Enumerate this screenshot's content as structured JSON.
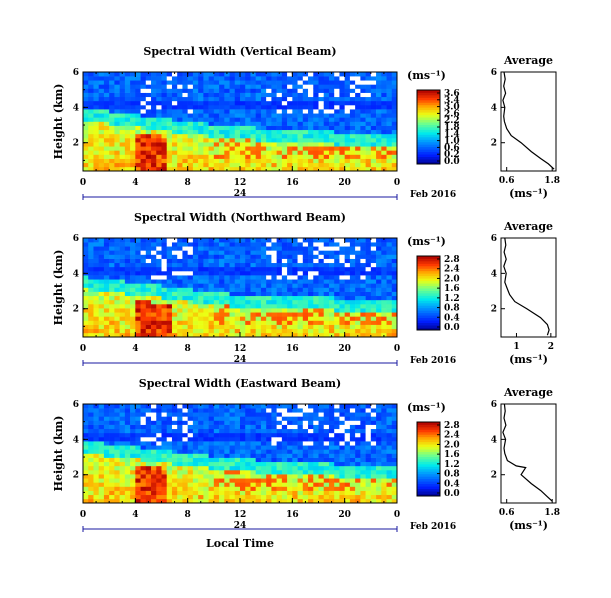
{
  "chart_data": [
    {
      "type": "heatmap",
      "title": "Spectral Width (Vertical Beam)",
      "ylabel": "Height (km)",
      "xlabel": "",
      "x_ticks": [
        "0",
        "4",
        "8",
        "12",
        "16",
        "20",
        "0"
      ],
      "x_day_label": "24",
      "date_label": "Feb 2016",
      "y_ticks": [
        "6",
        "4",
        "2"
      ],
      "x_range_hours": [
        0,
        24
      ],
      "y_range_km": [
        0.4,
        6
      ],
      "colorbar": {
        "label": "(ms⁻¹)",
        "ticks": [
          "3.6",
          "3.4",
          "3.0",
          "2.6",
          "2.2",
          "1.8",
          "1.4",
          "1.0",
          "0.6",
          "0.2",
          "0.0"
        ],
        "range": [
          0,
          3.6
        ]
      },
      "pattern": {
        "lower_layer_top_km": [
          3.3,
          2.9,
          2.5,
          2.2,
          2.0,
          1.9,
          1.9
        ],
        "lower_layer_hours": [
          0,
          4,
          8,
          12,
          16,
          20,
          24
        ],
        "hot_spot_hours": [
          4,
          6.5
        ],
        "missing_data": "sparse white gaps near top, hours 5-13 and 19-23"
      },
      "average": {
        "title": "Average",
        "xlabel": "(ms⁻¹)",
        "x_ticks": [
          "0.6",
          "1.8"
        ],
        "y_ticks": [
          "6",
          "4",
          "2"
        ],
        "xlim": [
          0.45,
          1.9
        ],
        "ylim": [
          0.4,
          6
        ],
        "profile": [
          [
            0.5,
            1.85
          ],
          [
            0.8,
            1.7
          ],
          [
            1.1,
            1.5
          ],
          [
            1.5,
            1.25
          ],
          [
            2.0,
            0.98
          ],
          [
            2.4,
            0.72
          ],
          [
            2.8,
            0.6
          ],
          [
            3.2,
            0.54
          ],
          [
            3.5,
            0.52
          ],
          [
            4.0,
            0.55
          ],
          [
            4.4,
            0.5
          ],
          [
            4.8,
            0.57
          ],
          [
            5.2,
            0.52
          ],
          [
            5.6,
            0.56
          ],
          [
            6.0,
            0.53
          ]
        ]
      }
    },
    {
      "type": "heatmap",
      "title": "Spectral Width (Northward Beam)",
      "ylabel": "Height (km)",
      "xlabel": "",
      "x_ticks": [
        "0",
        "4",
        "8",
        "12",
        "16",
        "20",
        "0"
      ],
      "x_day_label": "24",
      "date_label": "Feb 2016",
      "y_ticks": [
        "6",
        "4",
        "2"
      ],
      "x_range_hours": [
        0,
        24
      ],
      "y_range_km": [
        0.4,
        6
      ],
      "colorbar": {
        "label": "(ms⁻¹)",
        "ticks": [
          "2.8",
          "2.4",
          "2.0",
          "1.6",
          "1.2",
          "0.8",
          "0.4",
          "0.0"
        ],
        "range": [
          0,
          2.8
        ]
      },
      "pattern": {
        "lower_layer_top_km": [
          3.1,
          2.8,
          2.4,
          2.1,
          2.0,
          1.9,
          1.9
        ],
        "lower_layer_hours": [
          0,
          4,
          8,
          12,
          16,
          20,
          24
        ],
        "hot_spot_hours": [
          4,
          6.8
        ],
        "missing_data": "large white gaps near top, hours 5-8 and 16-22"
      },
      "average": {
        "title": "Average",
        "xlabel": "(ms⁻¹)",
        "x_ticks": [
          "1",
          "2"
        ],
        "y_ticks": [
          "6",
          "4",
          "2"
        ],
        "xlim": [
          0.55,
          2.15
        ],
        "ylim": [
          0.4,
          6
        ],
        "profile": [
          [
            0.5,
            1.9
          ],
          [
            0.8,
            1.95
          ],
          [
            1.1,
            1.9
          ],
          [
            1.5,
            1.7
          ],
          [
            2.0,
            1.3
          ],
          [
            2.4,
            0.95
          ],
          [
            2.8,
            0.8
          ],
          [
            3.2,
            0.72
          ],
          [
            3.5,
            0.66
          ],
          [
            4.0,
            0.7
          ],
          [
            4.4,
            0.63
          ],
          [
            4.8,
            0.7
          ],
          [
            5.2,
            0.64
          ],
          [
            5.6,
            0.69
          ],
          [
            6.0,
            0.66
          ]
        ]
      }
    },
    {
      "type": "heatmap",
      "title": "Spectral Width (Eastward Beam)",
      "ylabel": "Height (km)",
      "xlabel": "Local Time",
      "x_ticks": [
        "0",
        "4",
        "8",
        "12",
        "16",
        "20",
        "0"
      ],
      "x_day_label": "24",
      "date_label": "Feb 2016",
      "y_ticks": [
        "6",
        "4",
        "2"
      ],
      "x_range_hours": [
        0,
        24
      ],
      "y_range_km": [
        0.4,
        6
      ],
      "colorbar": {
        "label": "(ms⁻¹)",
        "ticks": [
          "2.8",
          "2.4",
          "2.0",
          "1.6",
          "1.2",
          "0.8",
          "0.4",
          "0.0"
        ],
        "range": [
          0,
          2.8
        ]
      },
      "pattern": {
        "lower_layer_top_km": [
          3.2,
          2.9,
          2.5,
          2.2,
          2.0,
          1.9,
          1.9
        ],
        "lower_layer_hours": [
          0,
          4,
          8,
          12,
          16,
          20,
          24
        ],
        "hot_spot_hours": [
          4,
          6.5
        ],
        "missing_data": "white gaps near top, hours 4-8 and 14-23"
      },
      "average": {
        "title": "Average",
        "xlabel": "(ms⁻¹)",
        "x_ticks": [
          "0.6",
          "1.8"
        ],
        "y_ticks": [
          "6",
          "4",
          "2"
        ],
        "xlim": [
          0.45,
          1.9
        ],
        "ylim": [
          0.4,
          6
        ],
        "profile": [
          [
            0.5,
            1.8
          ],
          [
            0.8,
            1.65
          ],
          [
            1.1,
            1.5
          ],
          [
            1.5,
            1.25
          ],
          [
            2.0,
            0.98
          ],
          [
            2.4,
            1.1
          ],
          [
            2.5,
            0.85
          ],
          [
            2.8,
            0.62
          ],
          [
            3.2,
            0.55
          ],
          [
            3.5,
            0.53
          ],
          [
            4.0,
            0.57
          ],
          [
            4.4,
            0.5
          ],
          [
            4.8,
            0.58
          ],
          [
            5.2,
            0.53
          ],
          [
            5.6,
            0.56
          ],
          [
            6.0,
            0.54
          ]
        ]
      }
    }
  ]
}
